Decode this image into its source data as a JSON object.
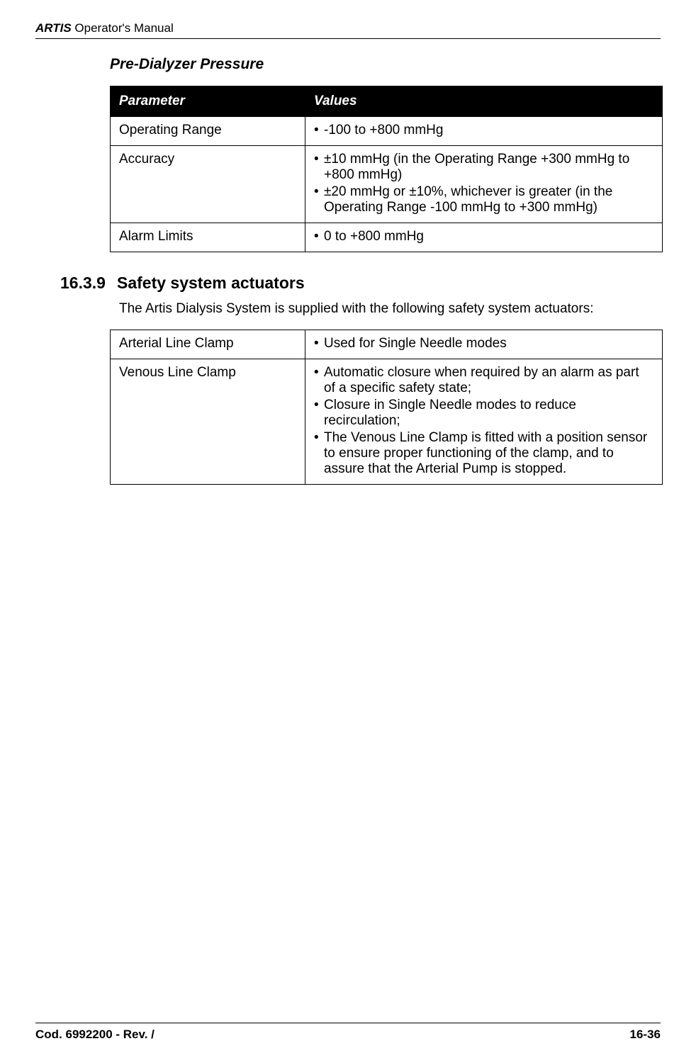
{
  "header": {
    "brand_bold": "ARTIS",
    "brand_rest": " Operator's Manual"
  },
  "section1": {
    "title": "Pre-Dialyzer Pressure",
    "table": {
      "headers": [
        "Parameter",
        "Values"
      ],
      "rows": [
        {
          "param": "Operating Range",
          "values": [
            "-100 to +800 mmHg"
          ]
        },
        {
          "param": "Accuracy",
          "values": [
            "±10 mmHg (in the Operating Range +300 mmHg to +800 mmHg)",
            "±20 mmHg or ±10%, whichever is greater (in the Operating Range -100 mmHg to +300 mmHg)"
          ]
        },
        {
          "param": "Alarm Limits",
          "values": [
            "0 to +800 mmHg"
          ]
        }
      ]
    }
  },
  "section2": {
    "number": "16.3.9",
    "title": "Safety system actuators",
    "intro": "The Artis Dialysis System is supplied with the following safety system actuators:",
    "table": {
      "rows": [
        {
          "param": "Arterial Line Clamp",
          "values": [
            "Used for Single Needle modes"
          ]
        },
        {
          "param": "Venous Line Clamp",
          "values": [
            "Automatic closure when required by an alarm as part of a specific safety state;",
            "Closure in Single Needle modes to reduce recirculation;",
            "The Venous Line Clamp is fitted with a position sensor to ensure proper functioning of the clamp, and to assure that the Arterial Pump is stopped."
          ]
        }
      ]
    }
  },
  "footer": {
    "left": "Cod. 6992200 - Rev. /",
    "right": "16-36"
  }
}
